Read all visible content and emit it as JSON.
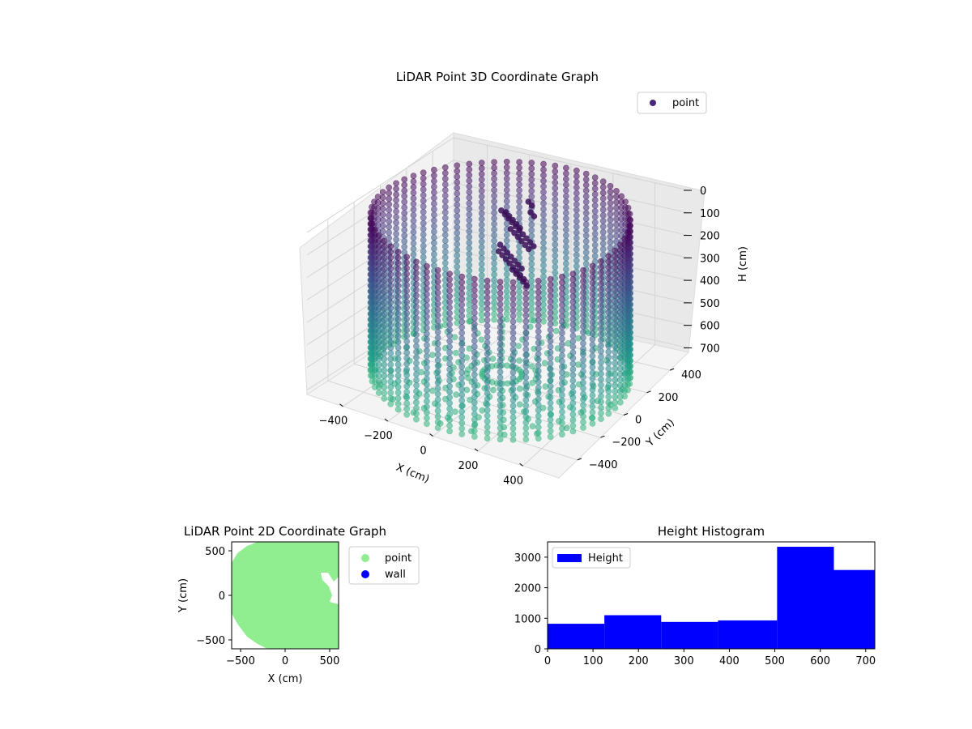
{
  "chart_data": [
    {
      "type": "scatter3d",
      "title": "LiDAR Point 3D Coordinate Graph",
      "xlabel": "X (cm)",
      "ylabel": "Y (cm)",
      "zlabel": "H (cm)",
      "xticks": [
        "−400",
        "−200",
        "0",
        "200",
        "400"
      ],
      "yticks": [
        "−400",
        "−200",
        "0",
        "200",
        "400"
      ],
      "zticks": [
        "0",
        "100",
        "200",
        "300",
        "400",
        "500",
        "600",
        "700"
      ],
      "xlim": [
        -560,
        560
      ],
      "ylim": [
        -560,
        560
      ],
      "zlim": [
        0,
        720
      ],
      "zaxis_inverted": true,
      "grid": true,
      "legend": {
        "placement": "top-right",
        "entries": [
          {
            "name": "point",
            "color": "#482878"
          }
        ]
      },
      "colormap": "viridis",
      "data_summary": {
        "shape": "circular wall of points around origin",
        "wall_radius_cm": 520,
        "height_range_cm": [
          0,
          720
        ],
        "interior_cluster": {
          "x_range_cm": [
            -150,
            0
          ],
          "y_range_cm": [
            150,
            350
          ],
          "h_range_cm": [
            80,
            400
          ]
        }
      }
    },
    {
      "type": "scatter",
      "title": "LiDAR Point 2D Coordinate Graph",
      "xlabel": "X (cm)",
      "ylabel": "Y (cm)",
      "xticks": [
        "−500",
        "0",
        "500"
      ],
      "yticks": [
        "500",
        "0",
        "−500"
      ],
      "xlim": [
        -600,
        600
      ],
      "ylim": [
        -600,
        600
      ],
      "legend": {
        "placement": "outside-right",
        "entries": [
          {
            "name": "point",
            "color": "#90ee90"
          },
          {
            "name": "wall",
            "color": "#0000ff"
          }
        ]
      },
      "region": "filled disc of radius ~600 cm with notch on right side near y = 200"
    },
    {
      "type": "bar",
      "title": "Height Histogram",
      "legend": {
        "placement": "top-left",
        "entries": [
          {
            "name": "Height",
            "color": "#0000ff"
          }
        ]
      },
      "xticks": [
        "0",
        "100",
        "200",
        "300",
        "400",
        "500",
        "600",
        "700"
      ],
      "yticks": [
        "0",
        "1000",
        "2000",
        "3000"
      ],
      "xlim": [
        0,
        720
      ],
      "ylim": [
        0,
        3500
      ],
      "bins": [
        {
          "start": 0,
          "end": 125,
          "count": 820
        },
        {
          "start": 125,
          "end": 250,
          "count": 1100
        },
        {
          "start": 250,
          "end": 375,
          "count": 880
        },
        {
          "start": 375,
          "end": 505,
          "count": 930
        },
        {
          "start": 505,
          "end": 630,
          "count": 3340
        },
        {
          "start": 630,
          "end": 720,
          "count": 2580
        }
      ],
      "color": "#0000ff"
    }
  ]
}
